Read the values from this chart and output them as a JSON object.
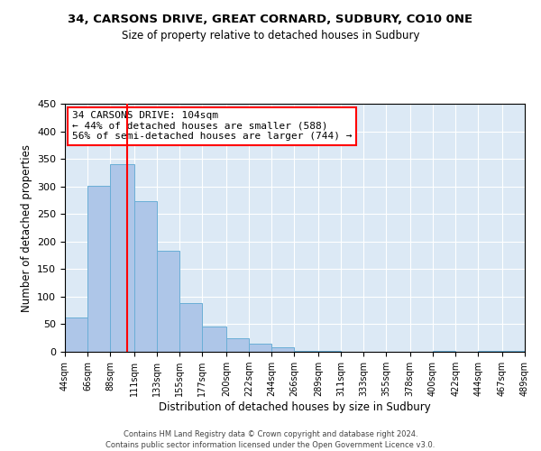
{
  "title": "34, CARSONS DRIVE, GREAT CORNARD, SUDBURY, CO10 0NE",
  "subtitle": "Size of property relative to detached houses in Sudbury",
  "xlabel": "Distribution of detached houses by size in Sudbury",
  "ylabel": "Number of detached properties",
  "bar_color": "#aec6e8",
  "bar_edge_color": "#6aaed6",
  "background_color": "#dce9f5",
  "grid_color": "#ffffff",
  "vline_x": 104,
  "vline_color": "red",
  "annotation_text": "34 CARSONS DRIVE: 104sqm\n← 44% of detached houses are smaller (588)\n56% of semi-detached houses are larger (744) →",
  "annotation_box_color": "white",
  "annotation_box_edge_color": "red",
  "footer_line1": "Contains HM Land Registry data © Crown copyright and database right 2024.",
  "footer_line2": "Contains public sector information licensed under the Open Government Licence v3.0.",
  "bins": [
    44,
    66,
    88,
    111,
    133,
    155,
    177,
    200,
    222,
    244,
    266,
    289,
    311,
    333,
    355,
    378,
    400,
    422,
    444,
    467,
    489
  ],
  "counts": [
    62,
    301,
    340,
    274,
    184,
    89,
    46,
    25,
    15,
    8,
    2,
    2,
    0,
    0,
    0,
    0,
    2,
    0,
    2,
    2
  ],
  "tick_labels": [
    "44sqm",
    "66sqm",
    "88sqm",
    "111sqm",
    "133sqm",
    "155sqm",
    "177sqm",
    "200sqm",
    "222sqm",
    "244sqm",
    "266sqm",
    "289sqm",
    "311sqm",
    "333sqm",
    "355sqm",
    "378sqm",
    "400sqm",
    "422sqm",
    "444sqm",
    "467sqm",
    "489sqm"
  ],
  "ylim": [
    0,
    450
  ],
  "yticks": [
    0,
    50,
    100,
    150,
    200,
    250,
    300,
    350,
    400,
    450
  ]
}
